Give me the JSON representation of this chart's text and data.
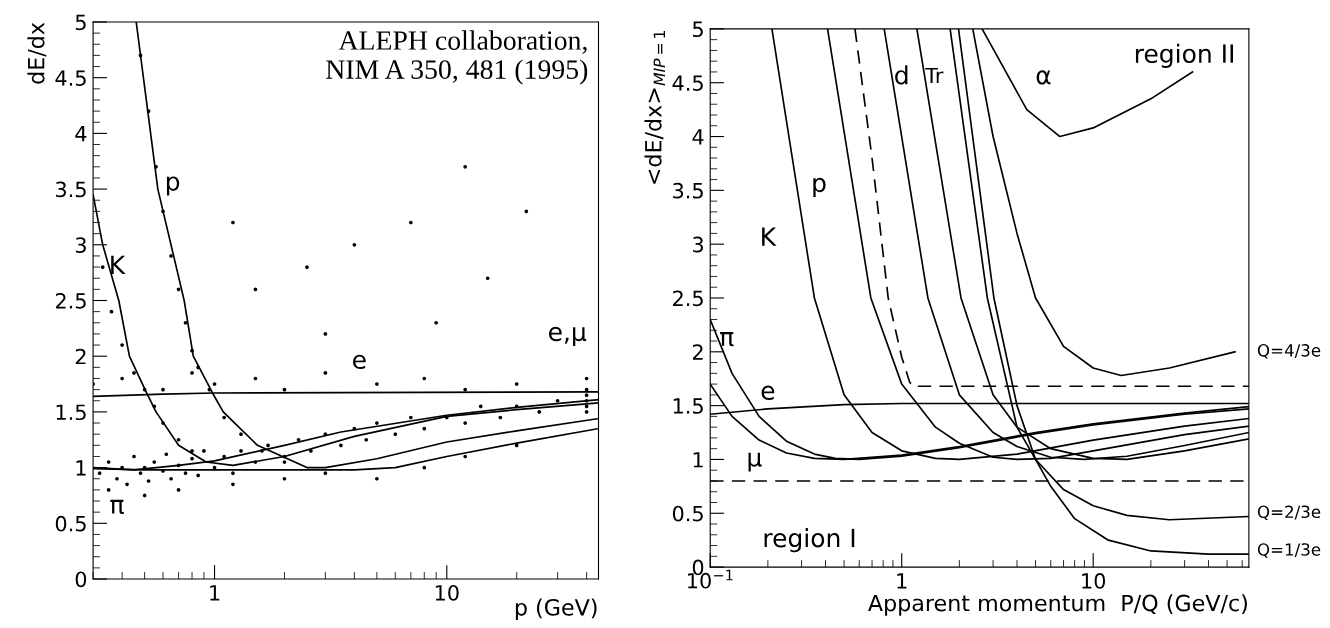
{
  "chart_data": [
    {
      "type": "line",
      "xlabel": "p (GeV)",
      "ylabel": "dE/dx",
      "log": "x",
      "xlim": [
        0.3,
        45
      ],
      "ylim": [
        0,
        5
      ],
      "xticks": [
        1,
        10
      ],
      "yticks": [
        0,
        0.5,
        1,
        1.5,
        2,
        2.5,
        3,
        3.5,
        4,
        4.5,
        5
      ],
      "grid": false,
      "annotations": [
        "ALEPH collaboration,\nNIM A 350, 481 (1995)",
        "p",
        "K",
        "π",
        "e",
        "e,μ"
      ],
      "series": [
        {
          "type": "scatter",
          "color": "#000000",
          "marker": "circle",
          "x": [
            0.32,
            0.35,
            0.38,
            0.4,
            0.42,
            0.45,
            0.48,
            0.5,
            0.52,
            0.55,
            0.6,
            0.62,
            0.65,
            0.7,
            0.75,
            0.8,
            0.85,
            0.9,
            1.0,
            1.1,
            1.2,
            1.3,
            1.5,
            1.7,
            2.0,
            2.3,
            2.6,
            3.0,
            3.5,
            4.0,
            4.5,
            5.0,
            6.0,
            7.0,
            8.0,
            10,
            12,
            14,
            17,
            20,
            25,
            30,
            0.35,
            0.5,
            0.7,
            1.2,
            2,
            3,
            5,
            8,
            12,
            20,
            0.33,
            0.36,
            0.4,
            0.45,
            0.5,
            0.55,
            0.6,
            0.7,
            0.8,
            0.48,
            0.52,
            0.56,
            0.6,
            0.65,
            0.7,
            0.75,
            0.8,
            0.85,
            0.95,
            1.1,
            1.3,
            1.6,
            2,
            0.3,
            0.4,
            0.6,
            0.8,
            1,
            1.5,
            2,
            3,
            5,
            8,
            12,
            20,
            40,
            40,
            40,
            40,
            40,
            40,
            1.2,
            2.5,
            4,
            7,
            15,
            3,
            9,
            1.5,
            22,
            12
          ],
          "values": [
            0.95,
            1.05,
            0.9,
            1.0,
            0.85,
            1.1,
            0.95,
            1.0,
            0.88,
            1.05,
            0.97,
            1.12,
            0.9,
            1.02,
            0.95,
            1.08,
            0.93,
            1.15,
            1.0,
            1.1,
            0.95,
            1.15,
            1.05,
            1.2,
            1.1,
            1.25,
            1.15,
            1.3,
            1.2,
            1.35,
            1.25,
            1.4,
            1.3,
            1.45,
            1.35,
            1.45,
            1.4,
            1.55,
            1.45,
            1.55,
            1.5,
            1.6,
            0.8,
            0.75,
            0.8,
            0.85,
            0.9,
            0.95,
            0.9,
            1.0,
            1.1,
            1.2,
            2.8,
            2.4,
            2.1,
            1.85,
            1.7,
            1.55,
            1.4,
            1.25,
            1.15,
            4.7,
            4.2,
            3.7,
            3.3,
            2.9,
            2.6,
            2.3,
            2.05,
            1.9,
            1.7,
            1.45,
            1.3,
            1.15,
            1.05,
            1.75,
            1.8,
            1.7,
            1.85,
            1.75,
            1.8,
            1.7,
            1.85,
            1.75,
            1.8,
            1.7,
            1.75,
            1.5,
            1.6,
            1.7,
            1.55,
            1.65,
            1.8,
            3.2,
            2.8,
            3.0,
            3.2,
            2.7,
            2.2,
            2.3,
            2.6,
            3.3,
            3.7
          ]
        },
        {
          "color": "#000000",
          "x": [
            0.3,
            0.6,
            1,
            45
          ],
          "values": [
            1.64,
            1.66,
            1.67,
            1.68
          ]
        },
        {
          "color": "#000000",
          "x": [
            0.3,
            0.45,
            0.7,
            1,
            2,
            3.5,
            10,
            20,
            45
          ],
          "values": [
            1.0,
            0.98,
            1.02,
            1.06,
            1.2,
            1.32,
            1.47,
            1.54,
            1.61
          ]
        },
        {
          "color": "#000000",
          "x": [
            0.3,
            0.33,
            0.387,
            0.43,
            0.51,
            0.56,
            0.7,
            0.92,
            1.2,
            2,
            4,
            10,
            20,
            45
          ],
          "values": [
            3.45,
            3.0,
            2.5,
            2.0,
            1.67,
            1.5,
            1.2,
            1.05,
            1.02,
            1.1,
            1.28,
            1.46,
            1.52,
            1.58
          ]
        },
        {
          "color": "#000000",
          "x": [
            0.46,
            0.57,
            0.74,
            0.81,
            0.98,
            1.09,
            1.53,
            2.5,
            3,
            5,
            10,
            20,
            45
          ],
          "values": [
            5,
            3.5,
            2.5,
            2.0,
            1.67,
            1.5,
            1.2,
            1.0,
            1.0,
            1.08,
            1.23,
            1.33,
            1.44
          ]
        },
        {
          "color": "#000000",
          "x": [
            0.3,
            0.5,
            1,
            2,
            4,
            6,
            10,
            20,
            45
          ],
          "values": [
            0.99,
            0.98,
            0.98,
            0.98,
            0.98,
            1.0,
            1.1,
            1.22,
            1.35
          ]
        }
      ]
    },
    {
      "type": "line",
      "xlabel": "Apparent momentum  P/Q (GeV/c)",
      "ylabel": "<dE/dx>$_{MIP=1}$",
      "log": "x",
      "xlim": [
        0.1,
        65
      ],
      "ylim": [
        0,
        5
      ],
      "xticks": [
        {
          "value": 0.1,
          "label": "10$^{−1}$"
        },
        1,
        10
      ],
      "yticks": [
        0,
        0.5,
        1,
        1.5,
        2,
        2.5,
        3,
        3.5,
        4,
        4.5,
        5
      ],
      "grid": false,
      "annotations": [
        "K",
        "p",
        "d",
        "Tr",
        "α",
        "region II",
        "π",
        "e",
        "μ",
        "region I",
        "Q=4/3e",
        "Q=2/3e",
        "Q=1/3e"
      ],
      "ref_lines": [
        {
          "axis": "y",
          "value": 0.8,
          "color": "#000000",
          "line_style": "dashed"
        }
      ],
      "series": [
        {
          "color": "#000000",
          "x": [
            0.1,
            0.2,
            0.5,
            1,
            65
          ],
          "values": [
            1.42,
            1.47,
            1.51,
            1.52,
            1.52
          ]
        },
        {
          "color": "#000000",
          "x": [
            0.1,
            0.13,
            0.18,
            0.25,
            0.35,
            0.5,
            1,
            2,
            5,
            10,
            30,
            65
          ],
          "values": [
            1.7,
            1.4,
            1.18,
            1.06,
            1.01,
            1.0,
            1.04,
            1.12,
            1.25,
            1.33,
            1.43,
            1.49
          ]
        },
        {
          "color": "#000000",
          "x": [
            0.1,
            0.13,
            0.18,
            0.25,
            0.35,
            0.45,
            0.6,
            1,
            2,
            5,
            10,
            30,
            65
          ],
          "values": [
            2.3,
            1.8,
            1.4,
            1.17,
            1.05,
            1.01,
            1.0,
            1.03,
            1.11,
            1.24,
            1.32,
            1.42,
            1.47
          ]
        },
        {
          "color": "#000000",
          "x": [
            0.21,
            0.35,
            0.5,
            0.7,
            1,
            1.5,
            2,
            4,
            10,
            30,
            65
          ],
          "values": [
            5,
            2.5,
            1.6,
            1.25,
            1.08,
            1.01,
            1.0,
            1.05,
            1.18,
            1.31,
            1.38
          ]
        },
        {
          "color": "#000000",
          "x": [
            0.41,
            0.69,
            1,
            1.5,
            2,
            3,
            4,
            6,
            10,
            30,
            65
          ],
          "values": [
            5,
            2.5,
            1.7,
            1.3,
            1.15,
            1.02,
            1.0,
            1.01,
            1.08,
            1.23,
            1.31
          ]
        },
        {
          "color": "#000000",
          "line_style": "dashed",
          "x": [
            0.57,
            0.7,
            0.85,
            1.0,
            1.1,
            1.14,
            65
          ],
          "values": [
            5,
            3.8,
            2.5,
            1.95,
            1.72,
            1.68,
            1.68
          ]
        },
        {
          "color": "#000000",
          "x": [
            0.81,
            1.37,
            2,
            3,
            4,
            6,
            9,
            15,
            30,
            65
          ],
          "values": [
            5,
            2.5,
            1.6,
            1.25,
            1.12,
            1.02,
            1.0,
            1.03,
            1.13,
            1.25
          ]
        },
        {
          "color": "#000000",
          "x": [
            1.2,
            2.04,
            3,
            4,
            6,
            10,
            15,
            30,
            65
          ],
          "values": [
            5,
            2.5,
            1.6,
            1.3,
            1.1,
            1.01,
            1.0,
            1.08,
            1.19
          ]
        },
        {
          "color": "#000000",
          "x": [
            1.79,
            2.8,
            4,
            5,
            7,
            10,
            15,
            25,
            65
          ],
          "values": [
            5,
            2.5,
            1.3,
            1.0,
            0.72,
            0.57,
            0.48,
            0.44,
            0.47
          ]
        },
        {
          "color": "#000000",
          "x": [
            1.98,
            3.03,
            4,
            5,
            6,
            8,
            12,
            20,
            40,
            65
          ],
          "values": [
            5,
            2.5,
            1.5,
            1.0,
            0.75,
            0.45,
            0.25,
            0.15,
            0.12,
            0.12
          ]
        },
        {
          "color": "#000000",
          "x": [
            2.35,
            3,
            4,
            5,
            7,
            10,
            14,
            25,
            55
          ],
          "values": [
            5,
            4,
            3.1,
            2.5,
            2.05,
            1.85,
            1.78,
            1.85,
            2.0
          ]
        },
        {
          "color": "#000000",
          "x": [
            2.63,
            3.5,
            4.5,
            6.7,
            10,
            20,
            33
          ],
          "values": [
            5,
            4.6,
            4.25,
            4.0,
            4.08,
            4.35,
            4.6
          ]
        }
      ]
    }
  ]
}
